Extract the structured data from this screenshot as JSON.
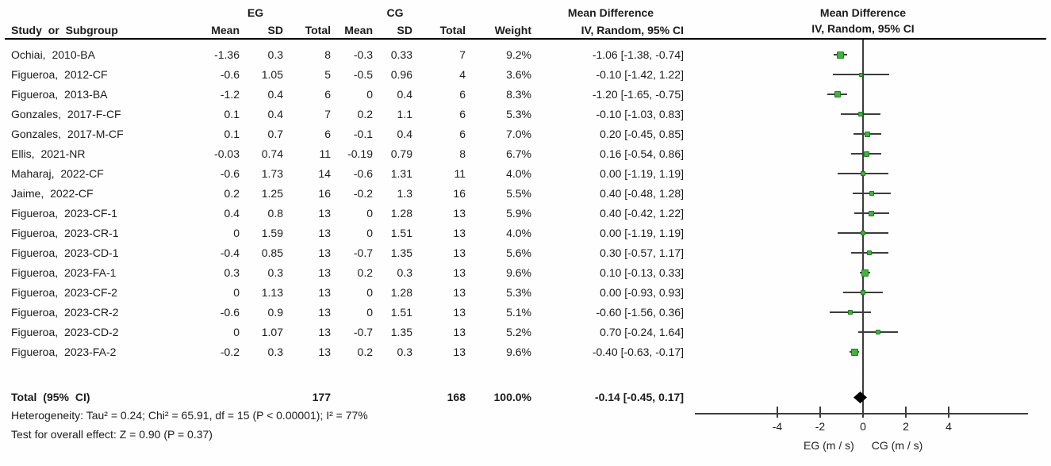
{
  "header": {
    "group_eg": "EG",
    "group_cg": "CG",
    "md_left": "Mean Difference",
    "md_right": "Mean Difference",
    "col_study": "Study or Subgroup",
    "col_mean": "Mean",
    "col_sd": "SD",
    "col_total": "Total",
    "col_weight": "Weight",
    "col_ci": "IV, Random, 95% CI",
    "plot_ci": "IV, Random, 95% CI"
  },
  "chart_data": {
    "type": "scatter",
    "subtype": "forest-plot",
    "title": "Mean Difference  IV, Random, 95% CI",
    "xlabel": "EG (m / s)   CG (m / s)",
    "x_ticks": [
      -4,
      -2,
      0,
      2,
      4
    ],
    "axis": {
      "label_eg": "EG (m / s)",
      "label_cg": "CG (m / s)",
      "ticks": [
        -4,
        -2,
        0,
        2,
        4
      ]
    },
    "studies": [
      {
        "name": "Ochiai, 2010-BA",
        "eg_mean": "-1.36",
        "eg_sd": "0.3",
        "eg_total": "8",
        "cg_mean": "-0.3",
        "cg_sd": "0.33",
        "cg_total": "7",
        "weight": "9.2%",
        "weight_val": 9.2,
        "md": -1.06,
        "lo": -1.38,
        "hi": -0.74,
        "ci_text": "-1.06 [-1.38, -0.74]"
      },
      {
        "name": "Figueroa, 2012-CF",
        "eg_mean": "-0.6",
        "eg_sd": "1.05",
        "eg_total": "5",
        "cg_mean": "-0.5",
        "cg_sd": "0.96",
        "cg_total": "4",
        "weight": "3.6%",
        "weight_val": 3.6,
        "md": -0.1,
        "lo": -1.42,
        "hi": 1.22,
        "ci_text": "-0.10 [-1.42, 1.22]"
      },
      {
        "name": "Figueroa, 2013-BA",
        "eg_mean": "-1.2",
        "eg_sd": "0.4",
        "eg_total": "6",
        "cg_mean": "0",
        "cg_sd": "0.4",
        "cg_total": "6",
        "weight": "8.3%",
        "weight_val": 8.3,
        "md": -1.2,
        "lo": -1.65,
        "hi": -0.75,
        "ci_text": "-1.20 [-1.65, -0.75]"
      },
      {
        "name": "Gonzales, 2017-F-CF",
        "eg_mean": "0.1",
        "eg_sd": "0.4",
        "eg_total": "7",
        "cg_mean": "0.2",
        "cg_sd": "1.1",
        "cg_total": "6",
        "weight": "5.3%",
        "weight_val": 5.3,
        "md": -0.1,
        "lo": -1.03,
        "hi": 0.83,
        "ci_text": "-0.10 [-1.03, 0.83]"
      },
      {
        "name": "Gonzales, 2017-M-CF",
        "eg_mean": "0.1",
        "eg_sd": "0.7",
        "eg_total": "6",
        "cg_mean": "-0.1",
        "cg_sd": "0.4",
        "cg_total": "6",
        "weight": "7.0%",
        "weight_val": 7.0,
        "md": 0.2,
        "lo": -0.45,
        "hi": 0.85,
        "ci_text": "0.20 [-0.45, 0.85]"
      },
      {
        "name": "Ellis, 2021-NR",
        "eg_mean": "-0.03",
        "eg_sd": "0.74",
        "eg_total": "11",
        "cg_mean": "-0.19",
        "cg_sd": "0.79",
        "cg_total": "8",
        "weight": "6.7%",
        "weight_val": 6.7,
        "md": 0.16,
        "lo": -0.54,
        "hi": 0.86,
        "ci_text": "0.16 [-0.54, 0.86]"
      },
      {
        "name": "Maharaj, 2022-CF",
        "eg_mean": "-0.6",
        "eg_sd": "1.73",
        "eg_total": "14",
        "cg_mean": "-0.6",
        "cg_sd": "1.31",
        "cg_total": "11",
        "weight": "4.0%",
        "weight_val": 4.0,
        "md": 0.0,
        "lo": -1.19,
        "hi": 1.19,
        "ci_text": "0.00 [-1.19, 1.19]"
      },
      {
        "name": "Jaime, 2022-CF",
        "eg_mean": "0.2",
        "eg_sd": "1.25",
        "eg_total": "16",
        "cg_mean": "-0.2",
        "cg_sd": "1.3",
        "cg_total": "16",
        "weight": "5.5%",
        "weight_val": 5.5,
        "md": 0.4,
        "lo": -0.48,
        "hi": 1.28,
        "ci_text": "0.40 [-0.48, 1.28]"
      },
      {
        "name": "Figueroa, 2023-CF-1",
        "eg_mean": "0.4",
        "eg_sd": "0.8",
        "eg_total": "13",
        "cg_mean": "0",
        "cg_sd": "1.28",
        "cg_total": "13",
        "weight": "5.9%",
        "weight_val": 5.9,
        "md": 0.4,
        "lo": -0.42,
        "hi": 1.22,
        "ci_text": "0.40 [-0.42, 1.22]"
      },
      {
        "name": "Figueroa, 2023-CR-1",
        "eg_mean": "0",
        "eg_sd": "1.59",
        "eg_total": "13",
        "cg_mean": "0",
        "cg_sd": "1.51",
        "cg_total": "13",
        "weight": "4.0%",
        "weight_val": 4.0,
        "md": 0.0,
        "lo": -1.19,
        "hi": 1.19,
        "ci_text": "0.00 [-1.19, 1.19]"
      },
      {
        "name": "Figueroa, 2023-CD-1",
        "eg_mean": "-0.4",
        "eg_sd": "0.85",
        "eg_total": "13",
        "cg_mean": "-0.7",
        "cg_sd": "1.35",
        "cg_total": "13",
        "weight": "5.6%",
        "weight_val": 5.6,
        "md": 0.3,
        "lo": -0.57,
        "hi": 1.17,
        "ci_text": "0.30 [-0.57, 1.17]"
      },
      {
        "name": "Figueroa, 2023-FA-1",
        "eg_mean": "0.3",
        "eg_sd": "0.3",
        "eg_total": "13",
        "cg_mean": "0.2",
        "cg_sd": "0.3",
        "cg_total": "13",
        "weight": "9.6%",
        "weight_val": 9.6,
        "md": 0.1,
        "lo": -0.13,
        "hi": 0.33,
        "ci_text": "0.10 [-0.13, 0.33]"
      },
      {
        "name": "Figueroa, 2023-CF-2",
        "eg_mean": "0",
        "eg_sd": "1.13",
        "eg_total": "13",
        "cg_mean": "0",
        "cg_sd": "1.28",
        "cg_total": "13",
        "weight": "5.3%",
        "weight_val": 5.3,
        "md": 0.0,
        "lo": -0.93,
        "hi": 0.93,
        "ci_text": "0.00 [-0.93, 0.93]"
      },
      {
        "name": "Figueroa, 2023-CR-2",
        "eg_mean": "-0.6",
        "eg_sd": "0.9",
        "eg_total": "13",
        "cg_mean": "0",
        "cg_sd": "1.51",
        "cg_total": "13",
        "weight": "5.1%",
        "weight_val": 5.1,
        "md": -0.6,
        "lo": -1.56,
        "hi": 0.36,
        "ci_text": "-0.60 [-1.56, 0.36]"
      },
      {
        "name": "Figueroa, 2023-CD-2",
        "eg_mean": "0",
        "eg_sd": "1.07",
        "eg_total": "13",
        "cg_mean": "-0.7",
        "cg_sd": "1.35",
        "cg_total": "13",
        "weight": "5.2%",
        "weight_val": 5.2,
        "md": 0.7,
        "lo": -0.24,
        "hi": 1.64,
        "ci_text": "0.70 [-0.24, 1.64]"
      },
      {
        "name": "Figueroa, 2023-FA-2",
        "eg_mean": "-0.2",
        "eg_sd": "0.3",
        "eg_total": "13",
        "cg_mean": "0.2",
        "cg_sd": "0.3",
        "cg_total": "13",
        "weight": "9.6%",
        "weight_val": 9.6,
        "md": -0.4,
        "lo": -0.63,
        "hi": -0.17,
        "ci_text": "-0.40 [-0.63, -0.17]"
      }
    ],
    "total": {
      "label": "Total (95% CI)",
      "eg_total": "177",
      "cg_total": "168",
      "weight": "100.0%",
      "md": -0.14,
      "lo": -0.45,
      "hi": 0.17,
      "ci_text": "-0.14 [-0.45, 0.17]"
    },
    "footnotes": {
      "heterogeneity": "Heterogeneity: Tau² = 0.24; Chi² = 65.91, df = 15 (P < 0.00001); I² = 77%",
      "overall": "Test for overall effect: Z = 0.90 (P = 0.37)"
    }
  },
  "colors": {
    "marker_fill": "#3eb53e",
    "marker_border": "#1f7a1f",
    "line": "#3d3d3d",
    "diamond": "#000000"
  }
}
